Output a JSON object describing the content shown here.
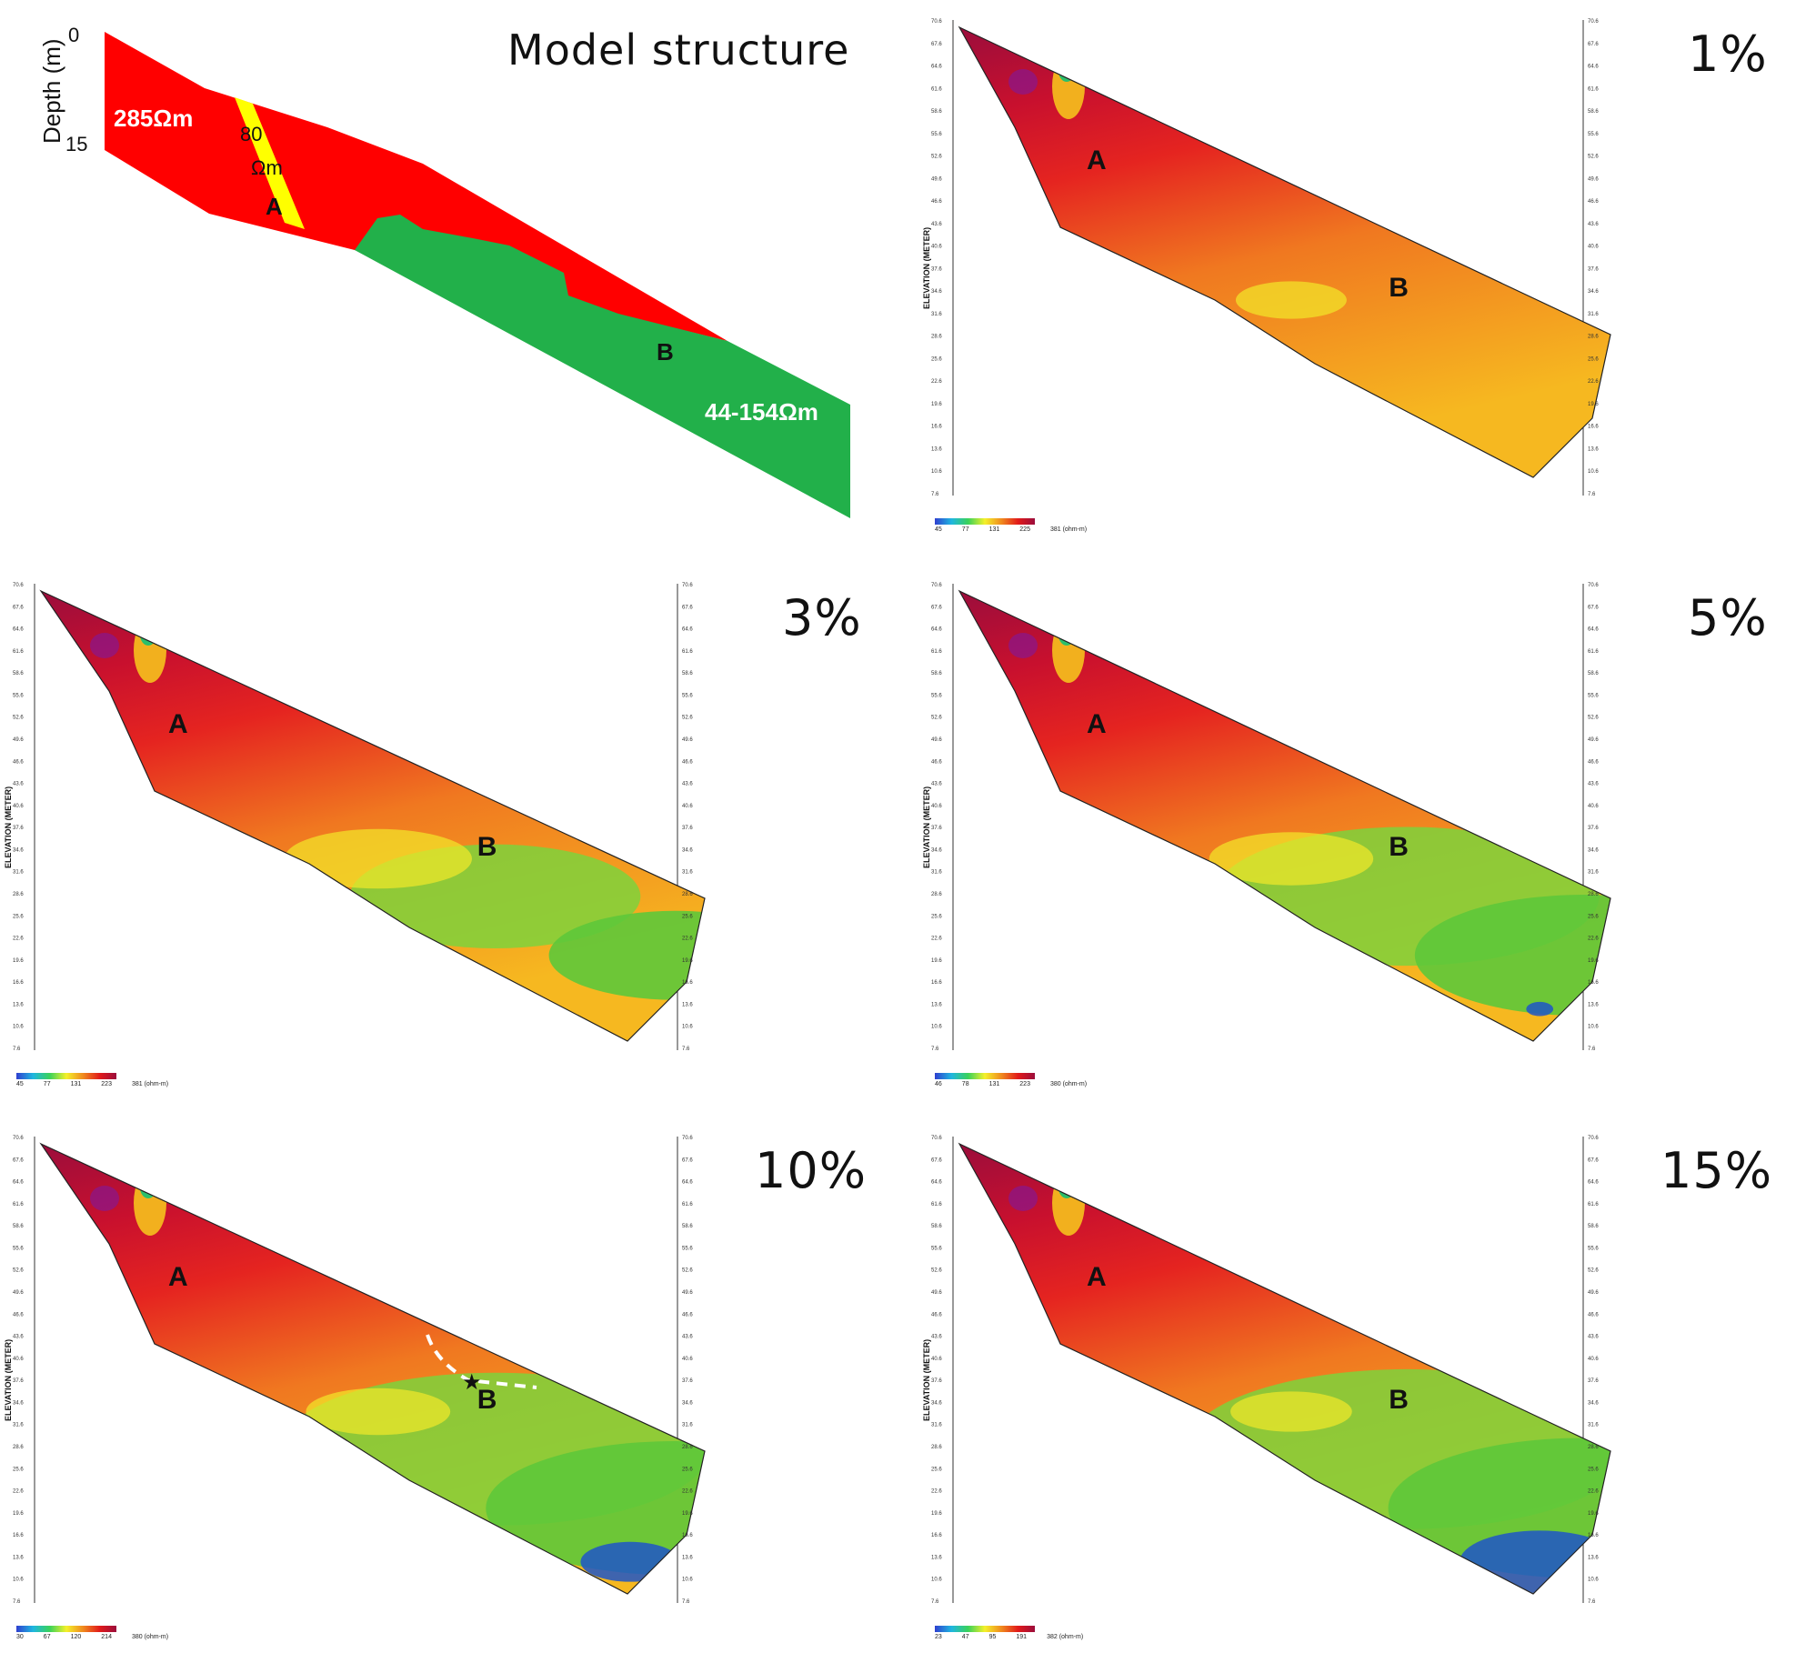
{
  "model": {
    "title": "Model  structure",
    "depth_axis_label": "Depth (m)",
    "depth_top": "0",
    "depth_bottom": "15",
    "resistivity_upper": "285Ωm",
    "resistivity_dyke_value": "80",
    "resistivity_dyke_unit": "Ωm",
    "resistivity_lower": "44-154Ωm",
    "label_a": "A",
    "label_b": "B",
    "colors": {
      "upper": "#ff0000",
      "dyke": "#ffff00",
      "lower": "#22b04a"
    }
  },
  "sections": [
    {
      "id": "p1",
      "title": "1%",
      "label_a": "A",
      "label_b": "B",
      "ylabel": "ELEVATION (METER)",
      "colorbar_ticks": [
        "45",
        "77",
        "131",
        "225",
        "381 (ohm-m)"
      ]
    },
    {
      "id": "p3",
      "title": "3%",
      "label_a": "A",
      "label_b": "B",
      "ylabel": "ELEVATION (METER)",
      "colorbar_ticks": [
        "45",
        "77",
        "131",
        "223",
        "381 (ohm-m)"
      ]
    },
    {
      "id": "p5",
      "title": "5%",
      "label_a": "A",
      "label_b": "B",
      "ylabel": "ELEVATION (METER)",
      "colorbar_ticks": [
        "46",
        "78",
        "131",
        "223",
        "380 (ohm-m)"
      ]
    },
    {
      "id": "p10",
      "title": "10%",
      "label_a": "A",
      "label_b": "B",
      "ylabel": "ELEVATION (METER)",
      "colorbar_ticks": [
        "30",
        "67",
        "120",
        "214",
        "380 (ohm-m)"
      ]
    },
    {
      "id": "p15",
      "title": "15%",
      "label_a": "A",
      "label_b": "B",
      "ylabel": "ELEVATION (METER)",
      "colorbar_ticks": [
        "23",
        "47",
        "95",
        "191",
        "382 (ohm-m)"
      ]
    }
  ],
  "elevation_ticks": [
    "70.6",
    "67.6",
    "64.6",
    "61.6",
    "58.6",
    "55.6",
    "52.6",
    "49.6",
    "46.6",
    "43.6",
    "40.6",
    "37.6",
    "34.6",
    "31.6",
    "28.6",
    "25.6",
    "22.6",
    "19.6",
    "16.6",
    "13.6",
    "10.6",
    "7.6"
  ]
}
